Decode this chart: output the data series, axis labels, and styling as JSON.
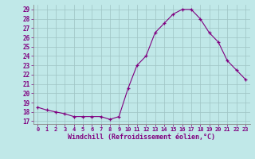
{
  "x": [
    0,
    1,
    2,
    3,
    4,
    5,
    6,
    7,
    8,
    9,
    10,
    11,
    12,
    13,
    14,
    15,
    16,
    17,
    18,
    19,
    20,
    21,
    22,
    23
  ],
  "y": [
    18.5,
    18.2,
    18.0,
    17.8,
    17.5,
    17.5,
    17.5,
    17.5,
    17.2,
    17.5,
    20.5,
    23.0,
    24.0,
    26.5,
    27.5,
    28.5,
    29.0,
    29.0,
    28.0,
    26.5,
    25.5,
    23.5,
    22.5,
    21.5
  ],
  "line_color": "#800080",
  "marker": "+",
  "bg_color": "#c0e8e8",
  "grid_color": "#9ec4c4",
  "xlabel": "Windchill (Refroidissement éolien,°C)",
  "xlabel_color": "#800080",
  "yticks": [
    17,
    18,
    19,
    20,
    21,
    22,
    23,
    24,
    25,
    26,
    27,
    28,
    29
  ],
  "xlim": [
    -0.5,
    23.5
  ],
  "ylim": [
    16.7,
    29.5
  ]
}
